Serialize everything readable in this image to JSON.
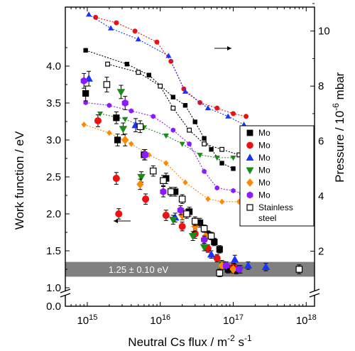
{
  "chart_data": {
    "type": "scatter",
    "title": "",
    "xlabel": "Neutral Cs flux / m",
    "xlabel_sup1": "-2",
    "xlabel_mid": " s",
    "xlabel_sup2": "-1",
    "ylabel": "Work function / eV",
    "y2label": "Pressure / 10",
    "y2label_sup": "-6",
    "y2label_unit": " mbar",
    "xscale": "log",
    "xlim": [
      500000000000000.0,
      1.3e+18
    ],
    "xticks": [
      {
        "value": 1000000000000000.0,
        "base": "10",
        "exp": "15"
      },
      {
        "value": 1e+16,
        "base": "10",
        "exp": "16"
      },
      {
        "value": 1e+17,
        "base": "10",
        "exp": "17"
      },
      {
        "value": 1e+18,
        "base": "10",
        "exp": "18"
      }
    ],
    "yticks": [
      "0.0",
      "1.0",
      "1.5",
      "2.0",
      "2.5",
      "3.0",
      "3.5",
      "4.0"
    ],
    "y2ticks": [
      "2",
      "4",
      "6",
      "8",
      "10"
    ],
    "y2lim": [
      0,
      11
    ],
    "band": {
      "y": 1.25,
      "err": 0.1,
      "label": "1.25 ± 0.10 eV",
      "color": "#808080"
    },
    "legend_position": "right",
    "series": [
      {
        "name": "Mo",
        "marker": "square",
        "filled": true,
        "color": "#000000",
        "wf": [
          [
            950000000000000.0,
            3.63,
            0.1
          ],
          [
            2500000000000000.0,
            3.3,
            0.08
          ],
          [
            2600000000000000.0,
            3.0,
            0.08
          ],
          [
            6000000000000000.0,
            2.8,
            0.07
          ],
          [
            1.2e+16,
            2.48,
            0.07
          ],
          [
            1.6e+16,
            2.3,
            0.06
          ],
          [
            2.5e+16,
            2.03,
            0.06
          ],
          [
            3.5e+16,
            1.88,
            0.06
          ],
          [
            4.5e+16,
            1.72,
            0.05
          ],
          [
            5.5e+16,
            1.62,
            0.05
          ],
          [
            6.5e+16,
            1.52,
            0.05
          ],
          [
            8.5e+16,
            1.25,
            0.05
          ],
          [
            1.1e+17,
            1.24,
            0.05
          ]
        ],
        "pressure": [
          [
            950000000000000.0,
            9.3
          ],
          [
            3500000000000000.0,
            8.8
          ],
          [
            7000000000000000.0,
            8.4
          ],
          [
            1.5e+16,
            7.6
          ],
          [
            2.2e+16,
            7.3
          ],
          [
            3e+16,
            6.7
          ],
          [
            4e+16,
            6.1
          ],
          [
            5e+16,
            5.7
          ],
          [
            7e+16,
            5.2
          ],
          [
            1e+17,
            5.0
          ]
        ]
      },
      {
        "name": "Mo",
        "marker": "circle",
        "filled": true,
        "color": "#ee1111",
        "wf": [
          [
            1400000000000000.0,
            3.26,
            0.08
          ],
          [
            2500000000000000.0,
            2.48,
            0.08
          ],
          [
            2700000000000000.0,
            2.0,
            0.07
          ],
          [
            6300000000000000.0,
            2.2,
            0.07
          ],
          [
            1.2e+16,
            1.98,
            0.07
          ],
          [
            2e+16,
            1.83,
            0.06
          ],
          [
            3e+16,
            1.73,
            0.06
          ],
          [
            4.5e+16,
            1.53,
            0.05
          ],
          [
            6e+16,
            1.4,
            0.05
          ],
          [
            1e+17,
            1.28,
            0.05
          ]
        ],
        "pressure": [
          [
            1300000000000000.0,
            10.5
          ],
          [
            2500000000000000.0,
            10.3
          ],
          [
            4500000000000000.0,
            10.0
          ],
          [
            9000000000000000.0,
            9.6
          ],
          [
            1.4e+16,
            8.9
          ],
          [
            2.1e+16,
            7.9
          ],
          [
            3.5e+16,
            7.4
          ],
          [
            6e+16,
            7.2
          ],
          [
            1e+17,
            7.0
          ],
          [
            1.5e+17,
            6.9
          ]
        ]
      },
      {
        "name": "Mo",
        "marker": "triangle-up",
        "filled": true,
        "color": "#1a33ff",
        "wf": [
          [
            1050000000000000.0,
            3.83,
            0.1
          ],
          [
            4600000000000000.0,
            3.2,
            0.09
          ],
          [
            1.6e+16,
            1.95,
            0.06
          ],
          [
            5e+16,
            1.45,
            0.05
          ],
          [
            1.05e+17,
            1.38,
            0.06
          ],
          [
            1.6e+17,
            1.3,
            0.05
          ],
          [
            2.8e+17,
            1.28,
            0.05
          ]
        ],
        "pressure": [
          [
            1050000000000000.0,
            10.6
          ],
          [
            2100000000000000.0,
            10.1
          ],
          [
            5000000000000000.0,
            9.7
          ],
          [
            1.3e+16,
            9.1
          ],
          [
            2.2e+16,
            7.8
          ],
          [
            4.5e+16,
            7.2
          ],
          [
            8.5e+16,
            6.9
          ],
          [
            1.4e+17,
            6.6
          ],
          [
            2.9e+17,
            6.2
          ]
        ]
      },
      {
        "name": "Mo",
        "marker": "triangle-down",
        "filled": true,
        "color": "#1a8c1a",
        "wf": [
          [
            2900000000000000.0,
            3.65,
            0.09
          ],
          [
            3100000000000000.0,
            3.15,
            0.08
          ],
          [
            5500000000000000.0,
            2.5,
            0.07
          ],
          [
            1.5e+16,
            1.92,
            0.06
          ],
          [
            2.8e+16,
            1.7,
            0.06
          ],
          [
            4e+16,
            1.55,
            0.05
          ],
          [
            7e+16,
            1.32,
            0.05
          ],
          [
            1.25e+17,
            1.25,
            0.05
          ]
        ],
        "pressure": [
          [
            1500000000000000.0,
            7.0
          ],
          [
            3300000000000000.0,
            6.8
          ],
          [
            6000000000000000.0,
            6.5
          ],
          [
            1.2e+16,
            6.2
          ],
          [
            2e+16,
            5.9
          ],
          [
            3.5e+16,
            5.5
          ],
          [
            6e+16,
            5.4
          ],
          [
            1e+17,
            5.4
          ]
        ]
      },
      {
        "name": "Mo",
        "marker": "diamond",
        "filled": true,
        "color": "#ff8800",
        "wf": [
          [
            3300000000000000.0,
            3.0,
            0.08
          ],
          [
            5300000000000000.0,
            2.4,
            0.07
          ],
          [
            2e+16,
            1.98,
            0.06
          ],
          [
            3e+16,
            1.83,
            0.06
          ],
          [
            4.2e+16,
            1.7,
            0.05
          ],
          [
            7e+16,
            1.3,
            0.05
          ],
          [
            1e+17,
            1.25,
            0.05
          ]
        ],
        "pressure": [
          [
            900000000000000.0,
            6.6
          ],
          [
            2000000000000000.0,
            6.3
          ],
          [
            4000000000000000.0,
            5.9
          ],
          [
            7000000000000000.0,
            5.5
          ],
          [
            1.2e+16,
            5.2
          ],
          [
            2.2e+16,
            4.5
          ],
          [
            4.5e+16,
            3.9
          ],
          [
            7e+16,
            3.8
          ],
          [
            1.2e+17,
            3.8
          ]
        ]
      },
      {
        "name": "Mo",
        "marker": "hexagon",
        "filled": true,
        "color": "#8c1aff",
        "wf": [
          [
            900000000000000.0,
            3.8,
            0.1
          ],
          [
            3300000000000000.0,
            3.5,
            0.09
          ],
          [
            6200000000000000.0,
            2.8,
            0.07
          ],
          [
            1.1e+16,
            2.3,
            0.07
          ],
          [
            1.9e+16,
            2.05,
            0.06
          ],
          [
            4e+16,
            1.65,
            0.05
          ],
          [
            8e+16,
            1.3,
            0.05
          ],
          [
            1.2e+17,
            1.25,
            0.05
          ]
        ],
        "pressure": [
          [
            950000000000000.0,
            7.4
          ],
          [
            2000000000000000.0,
            7.3
          ],
          [
            4000000000000000.0,
            7.1
          ],
          [
            8000000000000000.0,
            6.9
          ],
          [
            1.5e+16,
            6.4
          ],
          [
            2.5e+16,
            5.9
          ],
          [
            4e+16,
            4.9
          ],
          [
            6e+16,
            4.3
          ],
          [
            1e+17,
            4.2
          ],
          [
            1.3e+17,
            4.1
          ]
        ]
      },
      {
        "name": "Stainless\nsteel",
        "marker": "square",
        "filled": false,
        "color": "#000000",
        "wf": [
          [
            1850000000000000.0,
            3.75,
            0.1
          ],
          [
            5300000000000000.0,
            3.18,
            0.08
          ],
          [
            8000000000000000.0,
            2.58,
            0.07
          ],
          [
            1.1e+16,
            2.45,
            0.07
          ],
          [
            1.4e+16,
            2.3,
            0.06
          ],
          [
            2e+16,
            2.2,
            0.06
          ],
          [
            2.3e+16,
            2.0,
            0.06
          ],
          [
            3e+16,
            1.9,
            0.06
          ],
          [
            4e+16,
            1.8,
            0.05
          ],
          [
            5e+16,
            1.7,
            0.05
          ],
          [
            6.5e+16,
            1.2,
            0.05
          ],
          [
            8e+17,
            1.25,
            0.06
          ]
        ],
        "pressure": [
          [
            1900000000000000.0,
            8.8
          ],
          [
            5000000000000000.0,
            8.5
          ],
          [
            1e+16,
            8.0
          ],
          [
            1.5e+16,
            7.2
          ],
          [
            2.5e+16,
            6.4
          ],
          [
            4e+16,
            5.9
          ],
          [
            7e+16,
            5.7
          ],
          [
            1.2e+17,
            5.5
          ],
          [
            3e+17,
            5.3
          ],
          [
            8e+17,
            5.1
          ]
        ]
      }
    ]
  }
}
